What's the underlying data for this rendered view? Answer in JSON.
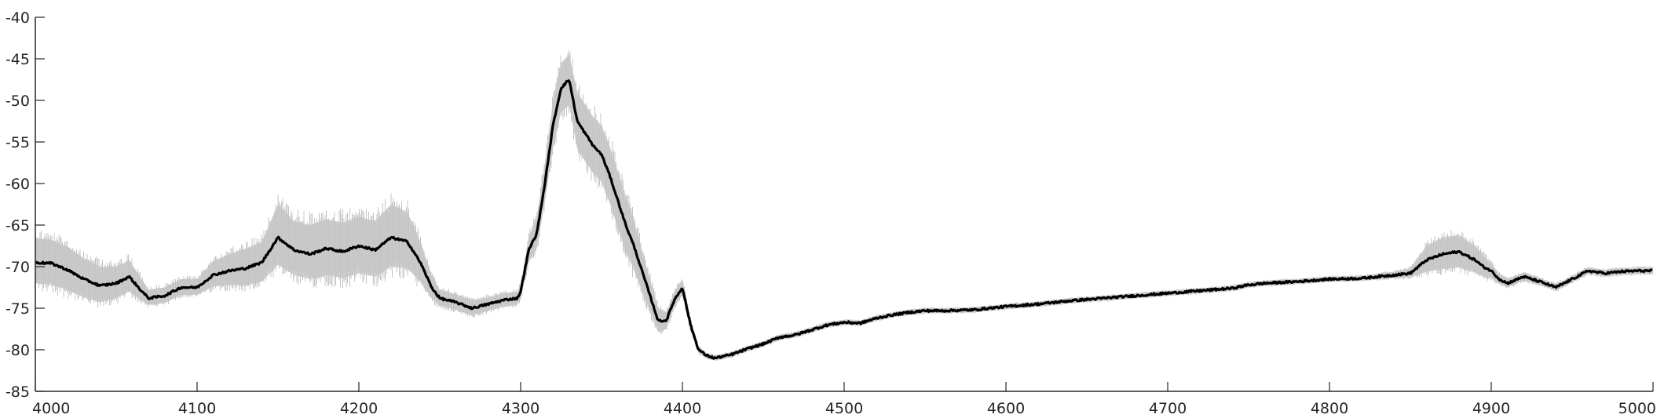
{
  "chart_data": {
    "type": "line",
    "title": "",
    "xlabel": "",
    "ylabel": "",
    "xlim": [
      4000,
      5000
    ],
    "ylim": [
      -85,
      -40
    ],
    "grid": false,
    "legend": "none",
    "x_ticks": [
      4000,
      4100,
      4200,
      4300,
      4400,
      4500,
      4600,
      4700,
      4800,
      4900,
      5000
    ],
    "y_ticks": [
      -40,
      -45,
      -50,
      -55,
      -60,
      -65,
      -70,
      -75,
      -80,
      -85
    ],
    "x_tick_labels": [
      "4000",
      "4100",
      "4200",
      "4300",
      "4400",
      "4500",
      "4600",
      "4700",
      "4800",
      "4900",
      "5000"
    ],
    "y_tick_labels": [
      "-40",
      "-45",
      "-50",
      "-55",
      "-60",
      "-65",
      "-70",
      "-75",
      "-80",
      "-85"
    ],
    "series": [
      {
        "style": "bold",
        "color": "#000000",
        "x": [
          4000,
          4010,
          4020,
          4030,
          4040,
          4050,
          4058,
          4065,
          4070,
          4080,
          4090,
          4100,
          4110,
          4120,
          4130,
          4140,
          4150,
          4160,
          4170,
          4180,
          4190,
          4200,
          4210,
          4220,
          4230,
          4238,
          4245,
          4250,
          4260,
          4270,
          4280,
          4290,
          4298,
          4300,
          4305,
          4310,
          4315,
          4320,
          4325,
          4330,
          4335,
          4340,
          4345,
          4350,
          4355,
          4360,
          4365,
          4370,
          4375,
          4380,
          4385,
          4390,
          4395,
          4400,
          4405,
          4410,
          4415,
          4420,
          4430,
          4440,
          4450,
          4460,
          4470,
          4480,
          4490,
          4500,
          4510,
          4520,
          4530,
          4540,
          4550,
          4560,
          4580,
          4600,
          4620,
          4640,
          4660,
          4680,
          4700,
          4720,
          4740,
          4750,
          4760,
          4780,
          4800,
          4820,
          4840,
          4850,
          4860,
          4870,
          4880,
          4890,
          4895,
          4900,
          4905,
          4910,
          4920,
          4930,
          4940,
          4950,
          4960,
          4970,
          4980,
          4990,
          5000
        ],
        "y": [
          -69.5,
          -69.6,
          -70.4,
          -71.5,
          -72.3,
          -72.0,
          -71.2,
          -72.8,
          -73.8,
          -73.5,
          -72.5,
          -72.5,
          -71.0,
          -70.5,
          -70.2,
          -69.5,
          -66.5,
          -68.0,
          -68.5,
          -67.8,
          -68.2,
          -67.5,
          -68.0,
          -66.5,
          -67.0,
          -69.5,
          -72.5,
          -73.8,
          -74.3,
          -75.0,
          -74.5,
          -74.0,
          -73.8,
          -73.0,
          -68.0,
          -66.0,
          -60.0,
          -53.0,
          -48.5,
          -47.5,
          -52.5,
          -54.0,
          -55.5,
          -56.5,
          -59.0,
          -62.0,
          -65.0,
          -67.5,
          -70.5,
          -73.5,
          -76.5,
          -76.5,
          -74.0,
          -72.5,
          -77.0,
          -80.0,
          -80.7,
          -81.0,
          -80.6,
          -79.9,
          -79.3,
          -78.5,
          -78.2,
          -77.6,
          -77.0,
          -76.7,
          -76.8,
          -76.2,
          -75.8,
          -75.5,
          -75.3,
          -75.3,
          -75.2,
          -74.8,
          -74.5,
          -74.1,
          -73.8,
          -73.5,
          -73.2,
          -72.9,
          -72.6,
          -72.2,
          -72.0,
          -71.8,
          -71.5,
          -71.4,
          -71.0,
          -70.8,
          -69.2,
          -68.5,
          -68.2,
          -69.2,
          -70.0,
          -70.5,
          -71.5,
          -72.0,
          -71.2,
          -71.8,
          -72.5,
          -71.5,
          -70.5,
          -70.8,
          -70.6,
          -70.5,
          -70.5
        ]
      },
      {
        "style": "band",
        "color": "#cfcfcf",
        "x": [
          4000,
          4010,
          4020,
          4030,
          4040,
          4050,
          4058,
          4065,
          4070,
          4080,
          4090,
          4100,
          4110,
          4120,
          4130,
          4140,
          4150,
          4160,
          4170,
          4180,
          4190,
          4200,
          4210,
          4220,
          4230,
          4238,
          4245,
          4250,
          4260,
          4270,
          4280,
          4290,
          4298,
          4300,
          4305,
          4310,
          4315,
          4320,
          4325,
          4330,
          4335,
          4340,
          4345,
          4350,
          4355,
          4360,
          4365,
          4370,
          4375,
          4380,
          4385,
          4390,
          4395,
          4400,
          4405,
          4410,
          4415,
          4420,
          4430,
          4440,
          4450,
          4460,
          4470,
          4480,
          4490,
          4500,
          4510,
          4520,
          4530,
          4540,
          4550,
          4560,
          4580,
          4600,
          4620,
          4640,
          4660,
          4680,
          4700,
          4720,
          4740,
          4750,
          4760,
          4780,
          4800,
          4820,
          4840,
          4850,
          4860,
          4870,
          4880,
          4890,
          4895,
          4900,
          4905,
          4910,
          4920,
          4930,
          4940,
          4950,
          4960,
          4970,
          4980,
          4990,
          5000
        ],
        "upper": [
          -66.5,
          -66.8,
          -67.6,
          -69.0,
          -70.0,
          -70.0,
          -69.2,
          -71.3,
          -72.8,
          -72.5,
          -71.5,
          -71.5,
          -69.3,
          -68.5,
          -67.8,
          -67.0,
          -62.5,
          -64.5,
          -65.0,
          -64.3,
          -64.7,
          -64.0,
          -64.5,
          -62.5,
          -63.5,
          -67.0,
          -71.0,
          -72.8,
          -73.3,
          -74.0,
          -73.7,
          -73.2,
          -73.0,
          -72.2,
          -66.5,
          -64.0,
          -57.5,
          -50.0,
          -45.5,
          -44.5,
          -49.0,
          -50.5,
          -52.0,
          -53.0,
          -55.5,
          -58.5,
          -61.5,
          -64.5,
          -68.0,
          -71.5,
          -75.0,
          -75.5,
          -73.0,
          -71.5,
          -76.3,
          -79.6,
          -80.4,
          -80.7,
          -80.3,
          -79.6,
          -79.0,
          -78.2,
          -77.9,
          -77.3,
          -76.7,
          -76.4,
          -76.5,
          -75.9,
          -75.5,
          -75.2,
          -75.0,
          -75.0,
          -74.9,
          -74.5,
          -74.2,
          -73.8,
          -73.5,
          -73.2,
          -72.9,
          -72.6,
          -72.3,
          -71.9,
          -71.7,
          -71.5,
          -71.2,
          -71.1,
          -70.6,
          -70.2,
          -67.5,
          -66.5,
          -66.2,
          -67.5,
          -68.7,
          -69.6,
          -70.9,
          -71.5,
          -70.7,
          -71.4,
          -72.1,
          -71.1,
          -70.1,
          -70.4,
          -70.2,
          -70.1,
          -70.1
        ],
        "lower": [
          -72.0,
          -72.2,
          -72.8,
          -73.7,
          -74.3,
          -73.8,
          -73.0,
          -74.0,
          -74.6,
          -74.4,
          -73.4,
          -73.4,
          -72.4,
          -72.2,
          -72.3,
          -71.8,
          -69.8,
          -71.0,
          -71.5,
          -71.0,
          -71.4,
          -70.8,
          -71.2,
          -70.0,
          -70.2,
          -71.8,
          -73.8,
          -74.7,
          -75.2,
          -75.9,
          -75.3,
          -74.8,
          -74.6,
          -73.8,
          -69.4,
          -67.8,
          -62.2,
          -55.8,
          -51.4,
          -50.6,
          -55.8,
          -57.4,
          -58.8,
          -59.8,
          -62.3,
          -65.3,
          -68.2,
          -70.4,
          -72.9,
          -75.4,
          -77.9,
          -77.5,
          -74.9,
          -73.4,
          -77.6,
          -80.4,
          -81.0,
          -81.3,
          -80.9,
          -80.2,
          -79.6,
          -78.8,
          -78.5,
          -77.9,
          -77.3,
          -77.0,
          -77.1,
          -76.5,
          -76.1,
          -75.8,
          -75.6,
          -75.6,
          -75.5,
          -75.1,
          -74.8,
          -74.4,
          -74.1,
          -73.8,
          -73.5,
          -73.2,
          -72.9,
          -72.5,
          -72.3,
          -72.1,
          -71.8,
          -71.7,
          -71.4,
          -71.3,
          -70.6,
          -70.3,
          -70.1,
          -70.7,
          -71.2,
          -71.4,
          -72.1,
          -72.5,
          -71.7,
          -72.2,
          -72.9,
          -71.9,
          -70.9,
          -71.2,
          -71.0,
          -70.9,
          -70.9
        ]
      }
    ]
  }
}
